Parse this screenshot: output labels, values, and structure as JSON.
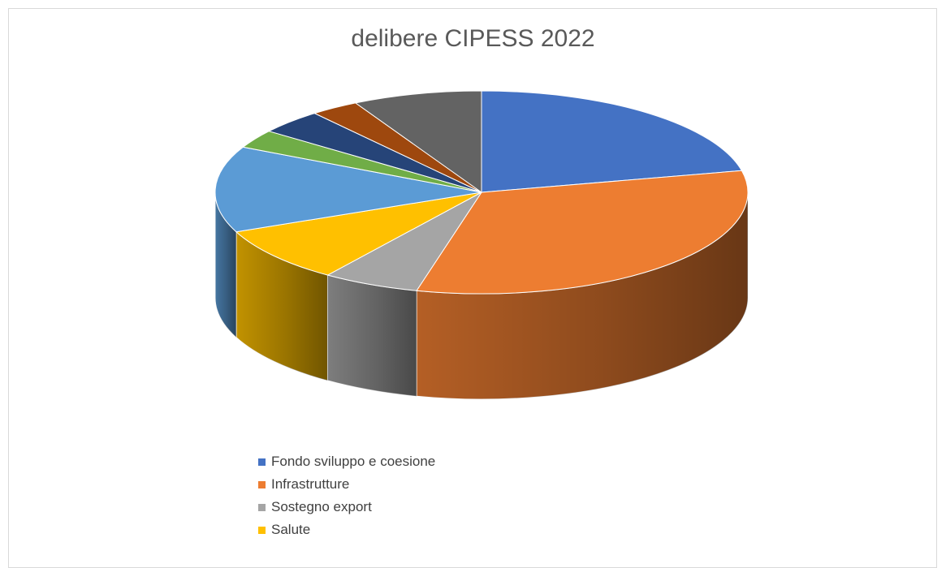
{
  "chart_data": {
    "type": "pie",
    "title": "delibere CIPESS 2022",
    "legend_position": "bottom",
    "slices": [
      {
        "label": "Fondo sviluppo e coesione",
        "value": 22,
        "color": "#4472C4"
      },
      {
        "label": "Infrastrutture",
        "value": 33,
        "color": "#ED7D31"
      },
      {
        "label": "Sostegno export",
        "value": 6,
        "color": "#A5A5A5"
      },
      {
        "label": "Salute",
        "value": 9,
        "color": "#FFC000"
      },
      {
        "label": "",
        "value": 14,
        "color": "#5B9BD5"
      },
      {
        "label": "",
        "value": 3,
        "color": "#70AD47"
      },
      {
        "label": "",
        "value": 4,
        "color": "#264478"
      },
      {
        "label": "",
        "value": 3,
        "color": "#9E480E"
      },
      {
        "label": "",
        "value": 8,
        "color": "#636363"
      }
    ]
  }
}
